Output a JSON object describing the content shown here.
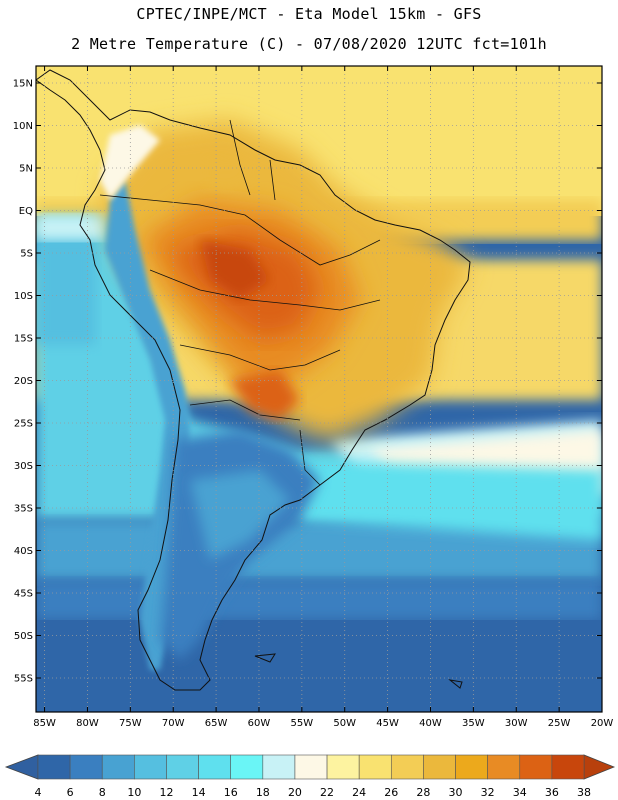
{
  "header": {
    "line1": "CPTEC/INPE/MCT -   Eta Model 15km - GFS",
    "line2": "2 Metre Temperature (C) - 07/08/2020 12UTC fct=101h"
  },
  "map": {
    "lat_labels": [
      "15N",
      "10N",
      "5N",
      "EQ",
      "5S",
      "10S",
      "15S",
      "20S",
      "25S",
      "30S",
      "35S",
      "40S",
      "45S",
      "50S",
      "55S"
    ],
    "lon_labels": [
      "85W",
      "80W",
      "75W",
      "70W",
      "65W",
      "60W",
      "55W",
      "50W",
      "45W",
      "40W",
      "35W",
      "30W",
      "25W",
      "20W"
    ],
    "lat_range": [
      17,
      -59
    ],
    "lon_range": [
      -86,
      -20
    ]
  },
  "colorbar": {
    "labels": [
      "4",
      "6",
      "8",
      "10",
      "12",
      "14",
      "16",
      "18",
      "20",
      "22",
      "24",
      "26",
      "28",
      "30",
      "32",
      "34",
      "36",
      "38"
    ],
    "colors": [
      "#2f66a8",
      "#3a7fc0",
      "#48a2d2",
      "#55bfe0",
      "#5fd0e6",
      "#5fe0ee",
      "#6af5f6",
      "#c8f2f6",
      "#fdf8e6",
      "#fdf3a0",
      "#f9e270",
      "#f3cd55",
      "#ebb83c",
      "#eca91c",
      "#e88b24",
      "#dc6214",
      "#c8460c"
    ],
    "under_color": "#3060a0",
    "over_color": "#b8400c"
  }
}
